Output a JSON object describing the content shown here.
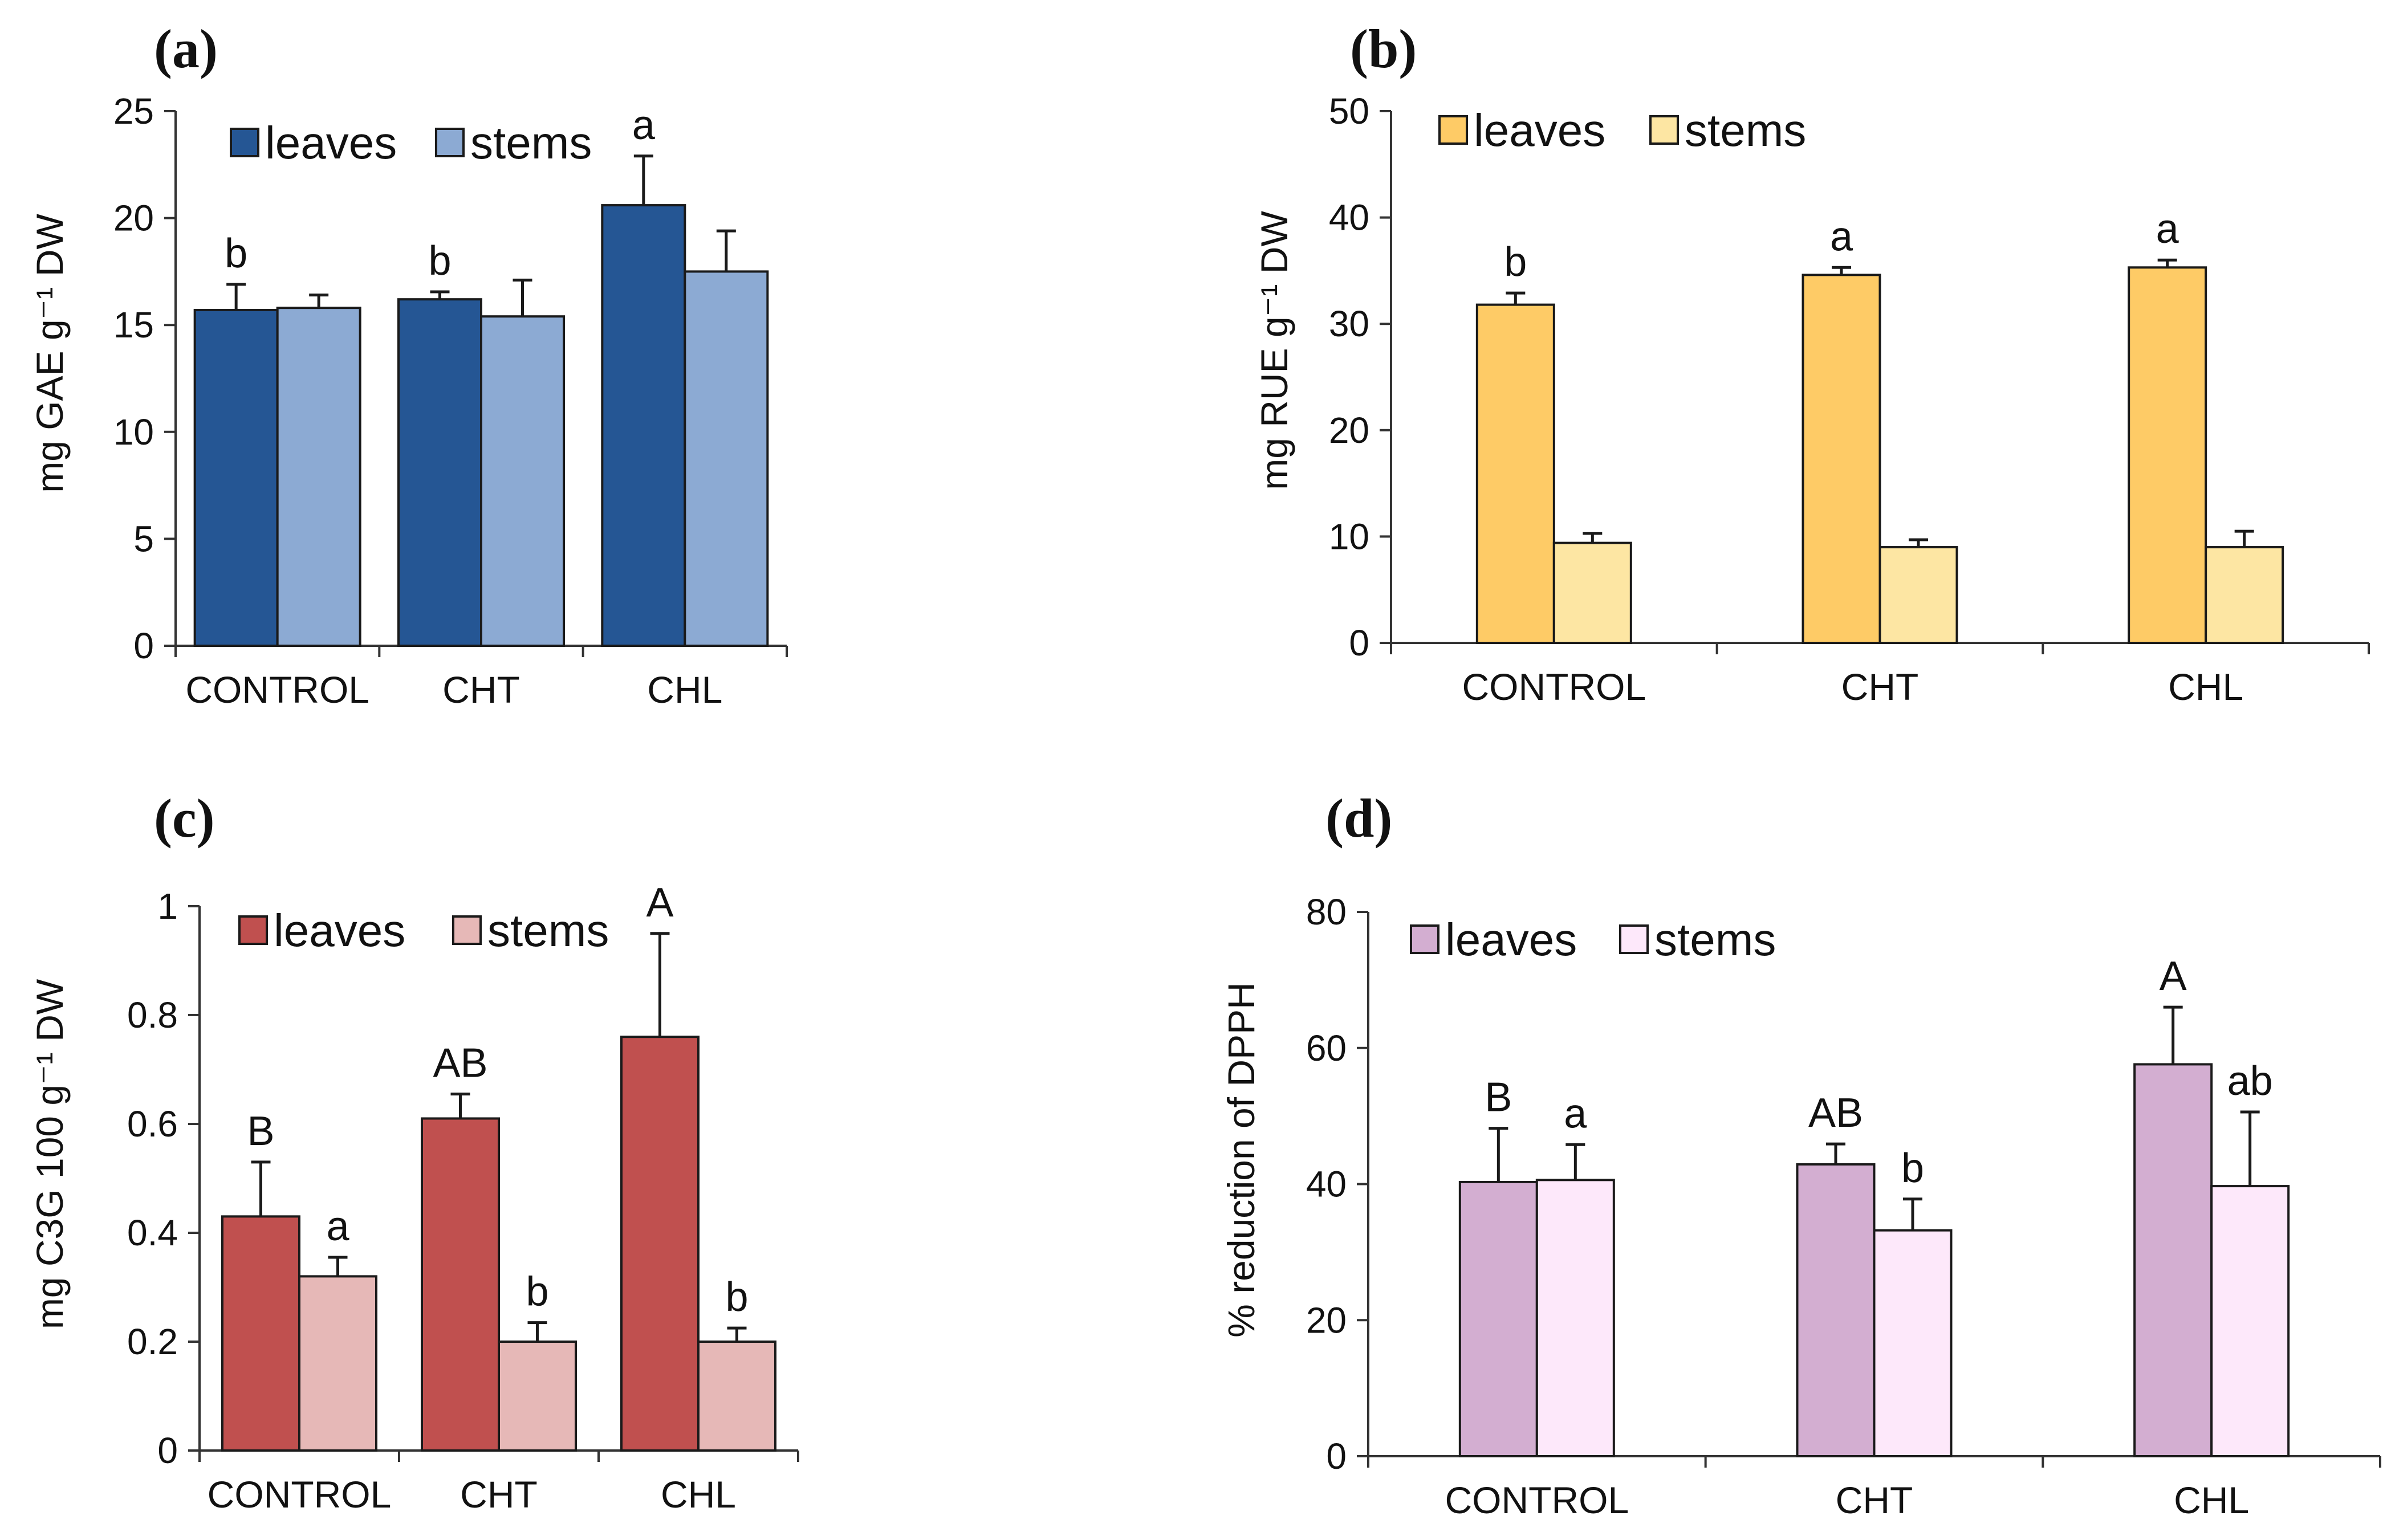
{
  "chart_data": [
    {
      "panel": "(a)",
      "type": "bar",
      "categories": [
        "CONTROL",
        "CHT",
        "CHL"
      ],
      "ylabel": "mg GAE g⁻¹ DW",
      "ylim": [
        0,
        25
      ],
      "yticks": [
        0,
        5,
        10,
        15,
        20,
        25
      ],
      "ytick_labels": [
        "0",
        "5",
        "10",
        "15",
        "20",
        "25"
      ],
      "legend_position": "top-left",
      "series": [
        {
          "name": "leaves",
          "color": "#255694",
          "values": [
            15.7,
            16.2,
            20.6
          ],
          "errors": [
            1.2,
            0.35,
            2.3
          ],
          "labels": [
            "b",
            "b",
            "a"
          ]
        },
        {
          "name": "stems",
          "color": "#8CAAD3",
          "values": [
            15.8,
            15.4,
            17.5
          ],
          "errors": [
            0.6,
            1.7,
            1.9
          ],
          "labels": [
            "",
            "",
            ""
          ]
        }
      ]
    },
    {
      "panel": "(b)",
      "type": "bar",
      "categories": [
        "CONTROL",
        "CHT",
        "CHL"
      ],
      "ylabel": "mg RUE g⁻¹ DW",
      "ylim": [
        0,
        50
      ],
      "yticks": [
        0,
        10,
        20,
        30,
        40,
        50
      ],
      "ytick_labels": [
        "0",
        "10",
        "20",
        "30",
        "40",
        "50"
      ],
      "legend_position": "top-left",
      "series": [
        {
          "name": "leaves",
          "color": "#FECB66",
          "values": [
            31.8,
            34.6,
            35.3
          ],
          "errors": [
            1.1,
            0.7,
            0.7
          ],
          "labels": [
            "b",
            "a",
            "a"
          ]
        },
        {
          "name": "stems",
          "color": "#FDE6A3",
          "values": [
            9.4,
            9.0,
            9.0
          ],
          "errors": [
            0.9,
            0.7,
            1.5
          ],
          "labels": [
            "",
            "",
            ""
          ]
        }
      ]
    },
    {
      "panel": "(c)",
      "type": "bar",
      "categories": [
        "CONTROL",
        "CHT",
        "CHL"
      ],
      "ylabel": "mg C3G 100 g⁻¹ DW",
      "ylim": [
        0,
        1
      ],
      "yticks": [
        0,
        0.2,
        0.4,
        0.6,
        0.8,
        1
      ],
      "ytick_labels": [
        "0",
        "0.2",
        "0.4",
        "0.6",
        "0.8",
        "1"
      ],
      "legend_position": "top-left",
      "series": [
        {
          "name": "leaves",
          "color": "#C0504F",
          "values": [
            0.43,
            0.61,
            0.76
          ],
          "errors": [
            0.1,
            0.045,
            0.19
          ],
          "labels": [
            "B",
            "AB",
            "A"
          ]
        },
        {
          "name": "stems",
          "color": "#E6B8B7",
          "values": [
            0.32,
            0.2,
            0.2
          ],
          "errors": [
            0.035,
            0.035,
            0.025
          ],
          "labels": [
            "a",
            "b",
            "b"
          ]
        }
      ]
    },
    {
      "panel": "(d)",
      "type": "bar",
      "categories": [
        "CONTROL",
        "CHT",
        "CHL"
      ],
      "ylabel": "% reduction of DPPH",
      "ylim": [
        0,
        80
      ],
      "yticks": [
        0,
        20,
        40,
        60,
        80
      ],
      "ytick_labels": [
        "0",
        "20",
        "40",
        "60",
        "80"
      ],
      "legend_position": "top-left",
      "series": [
        {
          "name": "leaves",
          "color": "#D3AED1",
          "values": [
            40.3,
            42.9,
            57.6
          ],
          "errors": [
            7.9,
            3.0,
            8.4
          ],
          "labels": [
            "B",
            "AB",
            "A"
          ]
        },
        {
          "name": "stems",
          "color": "#FDE8FA",
          "values": [
            40.6,
            33.2,
            39.7
          ],
          "errors": [
            5.2,
            4.6,
            10.9
          ],
          "labels": [
            "a",
            "b",
            "ab"
          ]
        }
      ]
    }
  ]
}
